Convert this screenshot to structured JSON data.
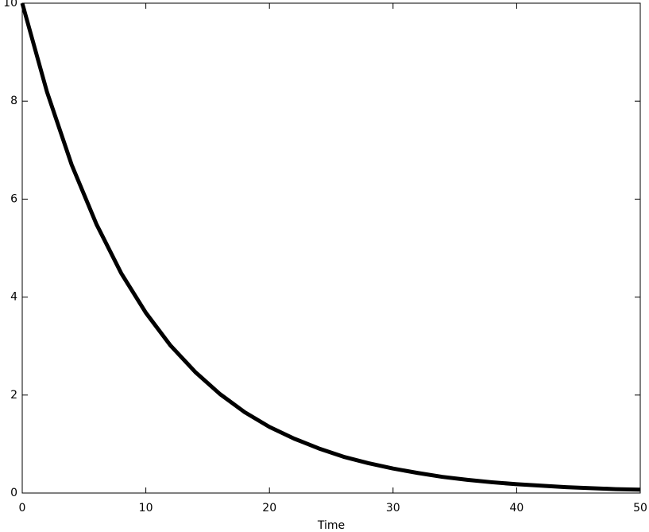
{
  "chart_data": {
    "type": "line",
    "xlabel": "Time",
    "x": [
      0,
      2,
      4,
      6,
      8,
      10,
      12,
      14,
      16,
      18,
      20,
      22,
      24,
      26,
      28,
      30,
      32,
      34,
      36,
      38,
      40,
      42,
      44,
      46,
      48,
      50
    ],
    "series": [
      {
        "color": "#000000",
        "values": [
          10,
          8.19,
          6.7,
          5.49,
          4.49,
          3.68,
          3.01,
          2.47,
          2.02,
          1.65,
          1.35,
          1.11,
          0.91,
          0.74,
          0.61,
          0.5,
          0.41,
          0.33,
          0.27,
          0.22,
          0.18,
          0.15,
          0.12,
          0.1,
          0.08,
          0.07
        ]
      }
    ],
    "xlim": [
      0,
      50
    ],
    "xticks": [
      0,
      10,
      20,
      30,
      40,
      50
    ],
    "ylim": [
      0,
      10
    ],
    "yticks": [
      0,
      2,
      4,
      6,
      8,
      10
    ],
    "grid": false
  }
}
